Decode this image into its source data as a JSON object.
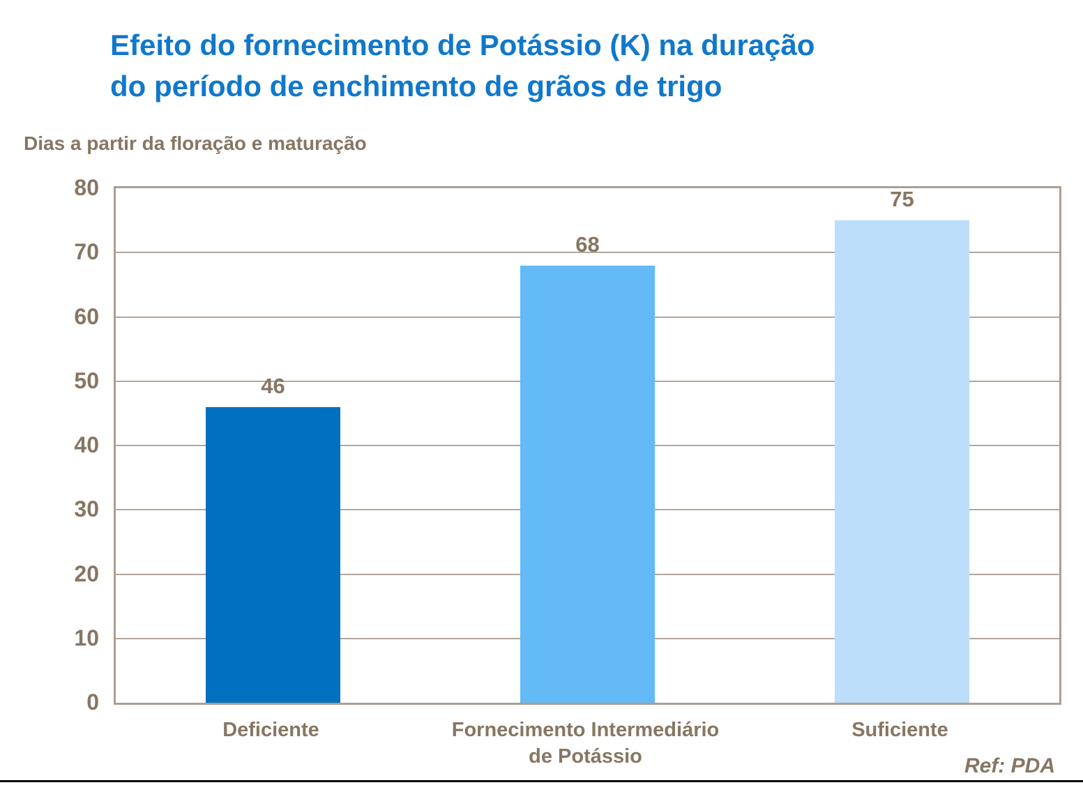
{
  "title": {
    "line1": "Efeito do fornecimento de Potássio (K) na duração",
    "line2": "do período de enchimento de grãos de trigo"
  },
  "y_axis_caption": "Dias a partir da floração e maturação",
  "ref_note": "Ref: PDA",
  "colors": {
    "title_blue": "#0f78cc",
    "text_brown": "#867663",
    "plot_border": "#ab9f93",
    "gridline": "#b3a79a",
    "bars": [
      "#0070c0",
      "#63baf6",
      "#bcdefa"
    ],
    "bottom_rule": "#0a0a0a"
  },
  "chart_data": {
    "type": "bar",
    "title": "Efeito do fornecimento de Potássio (K) na duração do período de enchimento de grãos de trigo",
    "ylabel": "Dias a partir da floração e maturação",
    "xlabel": "",
    "categories": [
      "Deficiente",
      "Fornecimento Intermediário\nde Potássio",
      "Suficiente"
    ],
    "values": [
      46,
      68,
      75
    ],
    "bar_colors": [
      "#0070c0",
      "#63baf6",
      "#bcdefa"
    ],
    "value_labels": [
      "46",
      "68",
      "75"
    ],
    "ylim": [
      0,
      80
    ],
    "yticks": [
      0,
      10,
      20,
      30,
      40,
      50,
      60,
      70,
      80
    ],
    "grid": true,
    "legend": false,
    "annotation": "Ref: PDA"
  }
}
